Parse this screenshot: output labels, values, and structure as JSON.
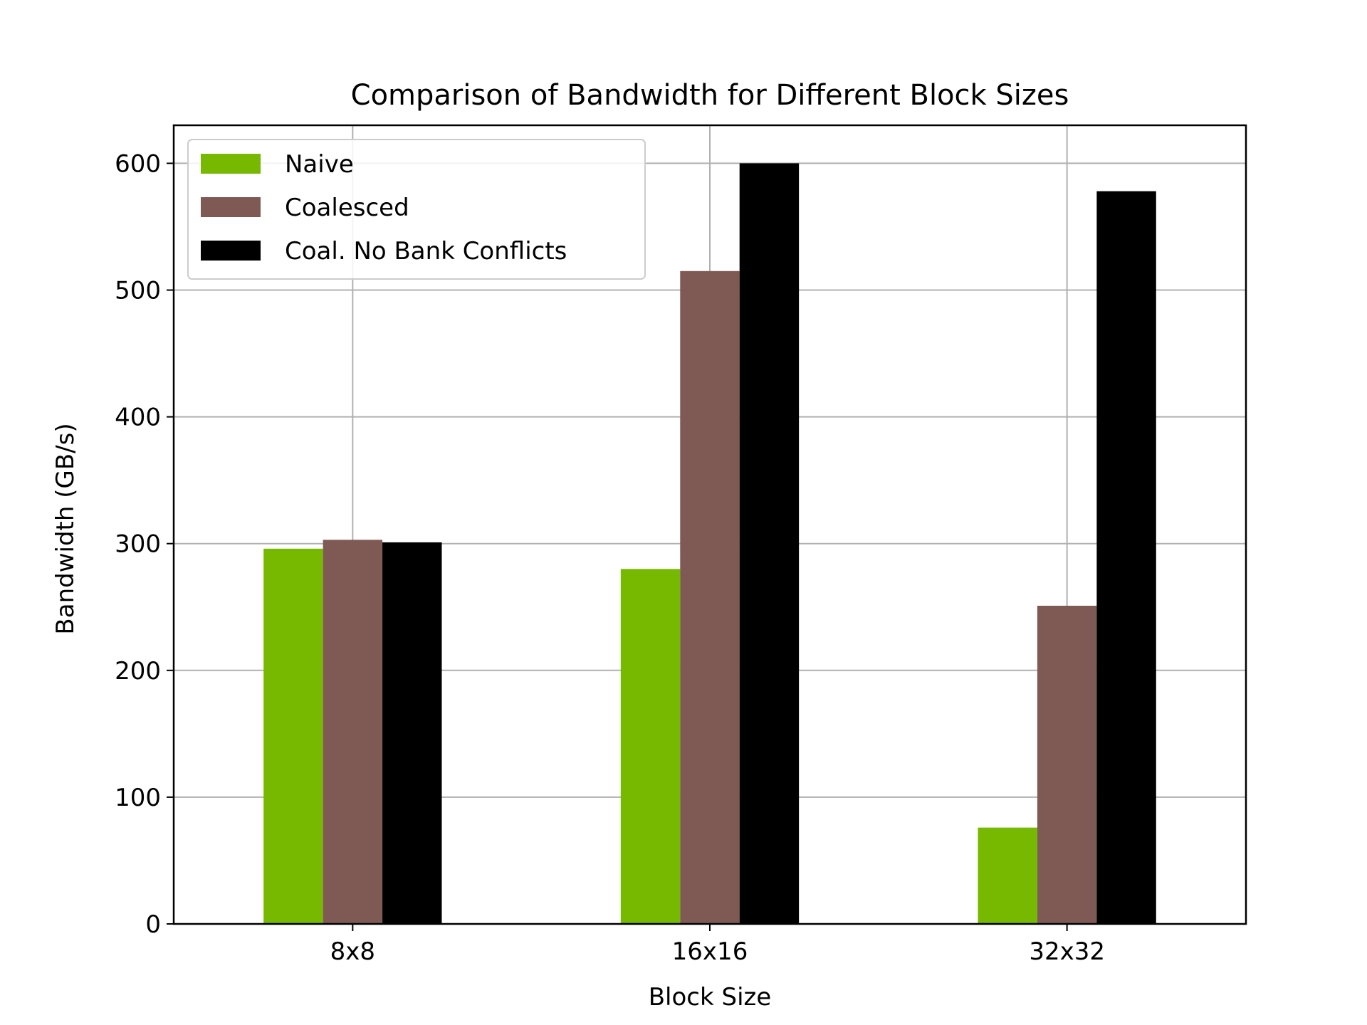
{
  "chart_data": {
    "type": "bar",
    "title": "Comparison of Bandwidth for Different Block Sizes",
    "xlabel": "Block Size",
    "ylabel": "Bandwidth (GB/s)",
    "categories": [
      "8x8",
      "16x16",
      "32x32"
    ],
    "series": [
      {
        "name": "Naive",
        "color": "#76b900",
        "values": [
          296,
          280,
          76
        ]
      },
      {
        "name": "Coalesced",
        "color": "#7f5a55",
        "values": [
          303,
          515,
          251
        ]
      },
      {
        "name": "Coal. No Bank Conflicts",
        "color": "#000000",
        "values": [
          301,
          600,
          578
        ]
      }
    ],
    "ylim": [
      0,
      630
    ],
    "yticks": [
      0,
      100,
      200,
      300,
      400,
      500,
      600
    ],
    "grid": true,
    "legend_position": "top-left"
  }
}
